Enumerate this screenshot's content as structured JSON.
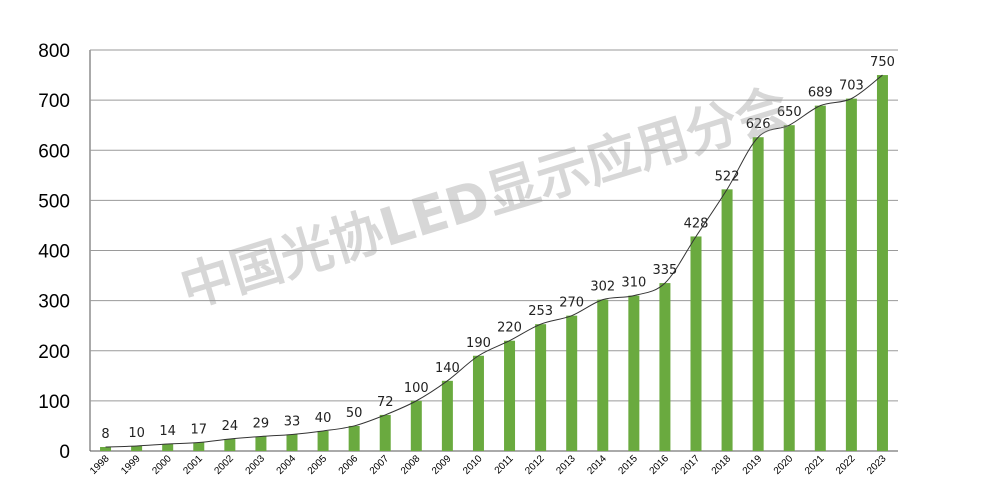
{
  "watermark": "中国光协LED显示应用分会",
  "colors": {
    "bar": "#6aaa3f",
    "grid": "#9a9a9a",
    "axis": "#555555",
    "trend": "#333333"
  },
  "chart_data": {
    "type": "bar",
    "categories": [
      "1998",
      "1999",
      "2000",
      "2001",
      "2002",
      "2003",
      "2004",
      "2005",
      "2006",
      "2007",
      "2008",
      "2009",
      "2010",
      "2011",
      "2012",
      "2013",
      "2014",
      "2015",
      "2016",
      "2017",
      "2018",
      "2019",
      "2020",
      "2021",
      "2022",
      "2023"
    ],
    "values": [
      8,
      10,
      14,
      17,
      24,
      29,
      33,
      40,
      50,
      72,
      100,
      140,
      190,
      220,
      253,
      270,
      302,
      310,
      335,
      428,
      522,
      626,
      650,
      689,
      703,
      750
    ],
    "title": "",
    "xlabel": "",
    "ylabel": "",
    "ylim": [
      0,
      800
    ],
    "yticks": [
      0,
      100,
      200,
      300,
      400,
      500,
      600,
      700,
      800
    ],
    "grid": true,
    "trendline": true,
    "data_labels": true
  }
}
